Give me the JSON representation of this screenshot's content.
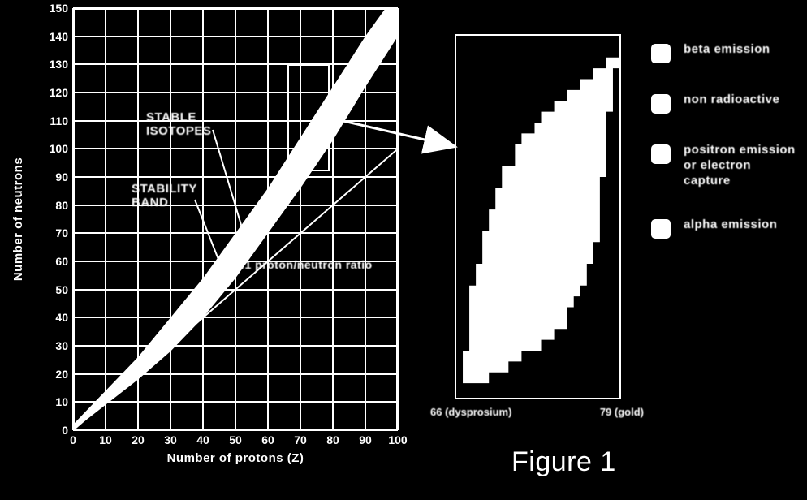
{
  "left_chart": {
    "type": "scatter-band",
    "xlabel": "Number of protons (Z)",
    "ylabel": "Number of neutrons",
    "xlim": [
      0,
      100
    ],
    "ylim": [
      0,
      150
    ],
    "x_tick_step": 10,
    "y_tick_step": 10,
    "grid_color": "#ffffff",
    "background_color": "#000000",
    "band_color": "#ffffff",
    "band_lower": [
      [
        0,
        0
      ],
      [
        10,
        9
      ],
      [
        20,
        18
      ],
      [
        30,
        28
      ],
      [
        40,
        40
      ],
      [
        50,
        54
      ],
      [
        60,
        70
      ],
      [
        70,
        86
      ],
      [
        80,
        103
      ],
      [
        90,
        122
      ],
      [
        100,
        140
      ]
    ],
    "band_upper": [
      [
        0,
        2
      ],
      [
        10,
        14
      ],
      [
        20,
        26
      ],
      [
        30,
        40
      ],
      [
        40,
        54
      ],
      [
        50,
        70
      ],
      [
        60,
        86
      ],
      [
        70,
        104
      ],
      [
        80,
        122
      ],
      [
        90,
        140
      ],
      [
        100,
        156
      ]
    ],
    "ratio_line": {
      "from": [
        0,
        0
      ],
      "to": [
        100,
        100
      ],
      "label": "1:1 proton/neutron ratio",
      "color": "#ffffff"
    },
    "callouts": {
      "stable_isotopes": {
        "line1": "STABLE",
        "line2": "ISOTOPES"
      },
      "stability_band": {
        "line1": "STABILITY",
        "line2": "BAND"
      }
    },
    "zoom_box": {
      "x": [
        66,
        79
      ],
      "y": [
        92,
        130
      ]
    },
    "label_fontsize": 15,
    "tick_fontsize": 14
  },
  "detail_panel": {
    "type": "area",
    "x_range_labels": {
      "left": "66 (dysprosium)",
      "right": "79 (gold)"
    },
    "shape_color": "#ffffff",
    "background_color": "#000000",
    "outline_points_pct": [
      [
        6,
        96
      ],
      [
        5,
        92
      ],
      [
        5,
        86
      ],
      [
        7,
        78
      ],
      [
        9,
        70
      ],
      [
        12,
        62
      ],
      [
        15,
        54
      ],
      [
        18,
        48
      ],
      [
        22,
        42
      ],
      [
        28,
        36
      ],
      [
        34,
        31
      ],
      [
        40,
        27
      ],
      [
        46,
        23
      ],
      [
        52,
        20
      ],
      [
        58,
        17
      ],
      [
        66,
        14
      ],
      [
        74,
        11
      ],
      [
        82,
        9
      ],
      [
        90,
        7
      ],
      [
        96,
        6
      ],
      [
        98,
        6
      ],
      [
        98,
        10
      ],
      [
        96,
        13
      ],
      [
        96,
        16
      ],
      [
        94,
        18
      ],
      [
        94,
        22
      ],
      [
        92,
        25
      ],
      [
        92,
        30
      ],
      [
        90,
        34
      ],
      [
        90,
        40
      ],
      [
        88,
        46
      ],
      [
        88,
        52
      ],
      [
        86,
        56
      ],
      [
        84,
        60
      ],
      [
        82,
        64
      ],
      [
        80,
        68
      ],
      [
        76,
        72
      ],
      [
        72,
        76
      ],
      [
        66,
        80
      ],
      [
        58,
        84
      ],
      [
        50,
        88
      ],
      [
        40,
        91
      ],
      [
        30,
        93
      ],
      [
        20,
        95
      ],
      [
        12,
        96
      ],
      [
        6,
        96
      ]
    ]
  },
  "legend": {
    "items": [
      {
        "label": "beta emission"
      },
      {
        "label": "non radioactive"
      },
      {
        "label": "positron emission\nor electron capture"
      },
      {
        "label": "alpha emission"
      }
    ],
    "swatch_color": "#ffffff",
    "label_fontsize": 15
  },
  "figure_title": "Figure 1",
  "colors": {
    "bg": "#000000",
    "fg": "#ffffff"
  }
}
